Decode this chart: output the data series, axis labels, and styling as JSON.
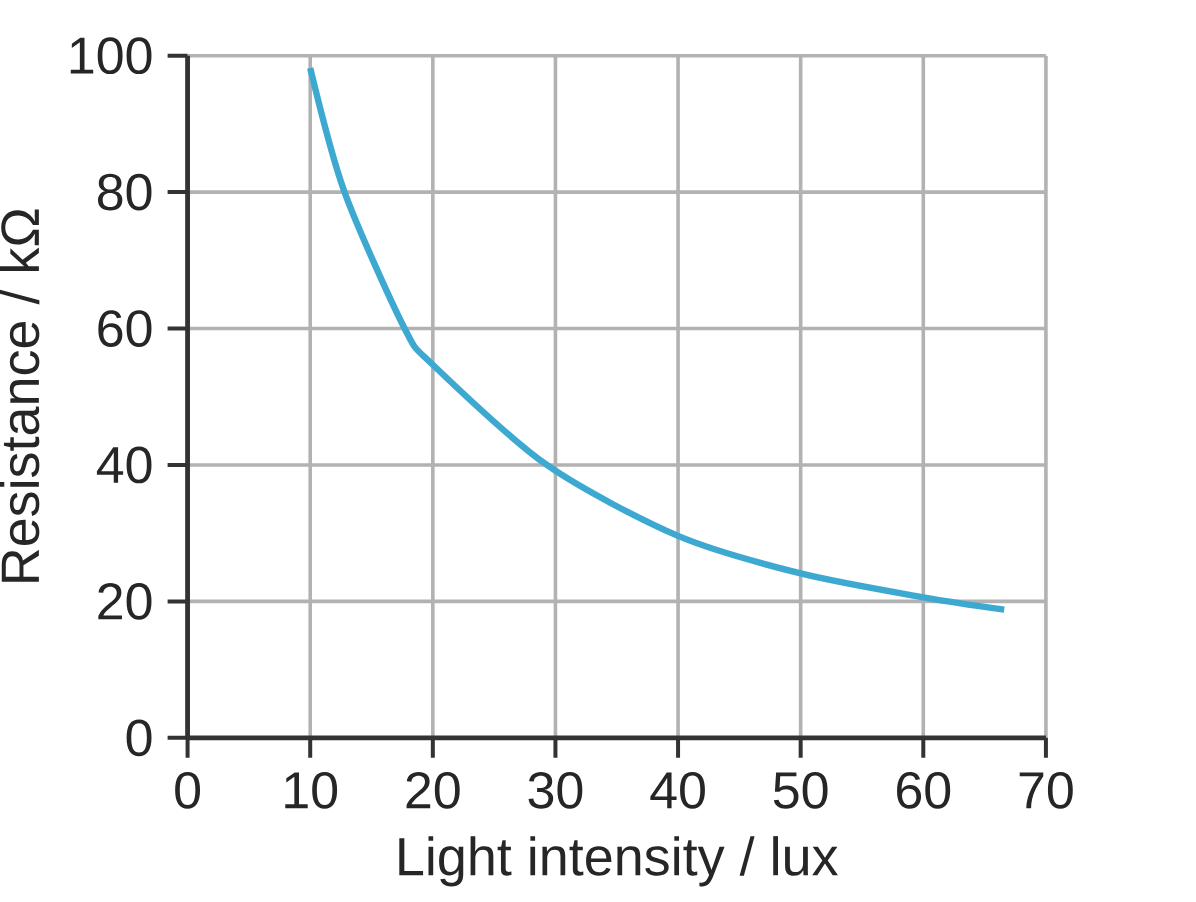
{
  "chart_data": {
    "type": "line",
    "xlabel": "Light intensity / lux",
    "ylabel": "Resistance / kΩ",
    "x": [
      10,
      12.8,
      17.7,
      20,
      29.3,
      40,
      50,
      60,
      66.6
    ],
    "series": [
      {
        "color": "#3ea9d0",
        "values": [
          98.2,
          80,
          60,
          54.7,
          40,
          29.6,
          24.1,
          20.6,
          18.8
        ]
      }
    ],
    "xlim": [
      0,
      70
    ],
    "ylim": [
      0,
      100
    ],
    "xticks": [
      0,
      10,
      20,
      30,
      40,
      50,
      60,
      70
    ],
    "yticks": [
      0,
      20,
      40,
      60,
      80,
      100
    ],
    "grid": true,
    "marker": "none",
    "line_style": "solid",
    "legend": false
  }
}
